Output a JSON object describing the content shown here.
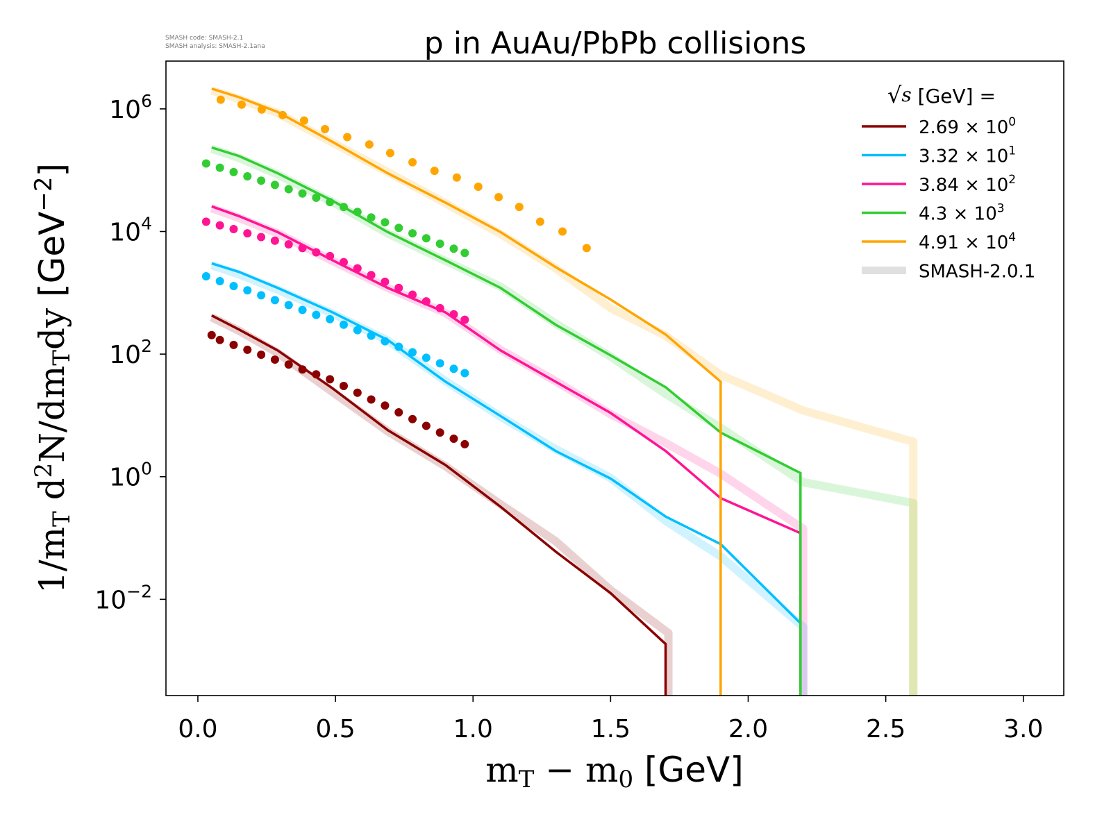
{
  "chart_data": {
    "type": "line",
    "title": "p in AuAu/PbPb collisions",
    "version_info": [
      "SMASH code:      SMASH-2.1",
      "SMASH analysis: SMASH-2.1ana"
    ],
    "xlabel": "m_T − m_0 [GeV]",
    "xlabel_parts": {
      "m": "m",
      "T": "T",
      "minus": " − m",
      "zero": "0",
      "unit": " [GeV]"
    },
    "ylabel_parts": {
      "a": "1/m",
      "T1": "T",
      "b": " d",
      "sq": "2",
      "c": "N/dm",
      "T2": "T",
      "d": "dy",
      "unit": " [GeV",
      "exp": "−2",
      "close": "]"
    },
    "yscale": "log",
    "xlim": [
      -0.116,
      3.147
    ],
    "ylim_log10": [
      -3.57,
      6.78
    ],
    "x_ticks": [
      "0.0",
      "0.5",
      "1.0",
      "1.5",
      "2.0",
      "2.5",
      "3.0"
    ],
    "x_tick_values": [
      0,
      0.5,
      1.0,
      1.5,
      2.0,
      2.5,
      3.0
    ],
    "y_ticks": [
      {
        "base": "10",
        "exp": "−2",
        "log10": -2
      },
      {
        "base": "10",
        "exp": "0",
        "log10": 0
      },
      {
        "base": "10",
        "exp": "2",
        "log10": 2
      },
      {
        "base": "10",
        "exp": "4",
        "log10": 4
      },
      {
        "base": "10",
        "exp": "6",
        "log10": 6
      }
    ],
    "legend": {
      "placement": "top-right",
      "title_sqrt": "s",
      "title_rest": " [GeV] =",
      "entries": [
        {
          "mant": "2.69 × 10",
          "exp": "0",
          "color": "#8b0000"
        },
        {
          "mant": "3.32 × 10",
          "exp": "1",
          "color": "#00bfff"
        },
        {
          "mant": "3.84 × 10",
          "exp": "2",
          "color": "#ff1493"
        },
        {
          "mant": "4.3 × 10",
          "exp": "3",
          "color": "#32cd32"
        },
        {
          "mant": "4.91 × 10",
          "exp": "4",
          "color": "#ffa500"
        },
        {
          "mant": "SMASH-2.0.1",
          "exp": "",
          "color": "#e0e0e0"
        }
      ]
    },
    "series": [
      {
        "name": "2.69",
        "color": "#8b0000",
        "line_x": [
          0.05,
          0.15,
          0.29,
          0.49,
          0.69,
          0.9,
          1.1,
          1.3,
          1.5,
          1.7,
          1.7
        ],
        "line_log10_y": [
          2.63,
          2.4,
          2.06,
          1.44,
          0.76,
          0.19,
          -0.49,
          -1.22,
          -1.9,
          -2.73,
          -3.6
        ],
        "band_x": [
          0.05,
          0.15,
          0.29,
          0.49,
          0.69,
          0.9,
          1.1,
          1.3,
          1.5,
          1.71,
          1.71
        ],
        "band_log10_y": [
          2.6,
          2.38,
          2.02,
          1.38,
          0.74,
          0.17,
          -0.45,
          -1.05,
          -1.85,
          -2.55,
          -3.6
        ],
        "data_x": [
          0.05,
          0.08,
          0.13,
          0.18,
          0.23,
          0.28,
          0.33,
          0.38,
          0.43,
          0.48,
          0.53,
          0.58,
          0.63,
          0.68,
          0.73,
          0.78,
          0.83,
          0.88,
          0.93,
          0.97
        ],
        "data_log10_y": [
          2.31,
          2.23,
          2.15,
          2.07,
          1.99,
          1.91,
          1.83,
          1.75,
          1.67,
          1.59,
          1.48,
          1.37,
          1.26,
          1.16,
          1.05,
          0.94,
          0.83,
          0.72,
          0.62,
          0.53
        ]
      },
      {
        "name": "33.2",
        "color": "#00bfff",
        "line_x": [
          0.05,
          0.15,
          0.29,
          0.49,
          0.69,
          0.9,
          1.1,
          1.3,
          1.5,
          1.7,
          1.9,
          2.19,
          2.19
        ],
        "line_log10_y": [
          3.48,
          3.34,
          3.08,
          2.68,
          2.23,
          1.55,
          0.99,
          0.42,
          -0.03,
          -0.65,
          -1.1,
          -2.39,
          -3.6
        ],
        "band_x": [
          0.05,
          0.15,
          0.29,
          0.49,
          0.69,
          0.9,
          1.1,
          1.3,
          1.5,
          1.7,
          1.9,
          2.2,
          2.2
        ],
        "band_log10_y": [
          3.45,
          3.3,
          3.05,
          2.66,
          2.22,
          1.56,
          0.98,
          0.45,
          -0.02,
          -0.72,
          -1.3,
          -2.45,
          -3.6
        ],
        "data_x": [
          0.03,
          0.08,
          0.13,
          0.18,
          0.23,
          0.28,
          0.33,
          0.38,
          0.43,
          0.48,
          0.53,
          0.58,
          0.63,
          0.68,
          0.73,
          0.78,
          0.83,
          0.88,
          0.93,
          0.97
        ],
        "data_log10_y": [
          3.27,
          3.19,
          3.11,
          3.04,
          2.96,
          2.88,
          2.8,
          2.72,
          2.64,
          2.57,
          2.48,
          2.39,
          2.3,
          2.21,
          2.12,
          2.03,
          1.94,
          1.85,
          1.76,
          1.69
        ]
      },
      {
        "name": "384",
        "color": "#ff1493",
        "line_x": [
          0.05,
          0.15,
          0.29,
          0.49,
          0.69,
          0.9,
          1.1,
          1.3,
          1.5,
          1.7,
          1.9,
          2.19,
          2.19
        ],
        "line_log10_y": [
          4.41,
          4.25,
          3.99,
          3.53,
          3.08,
          2.68,
          2.06,
          1.55,
          1.04,
          0.42,
          -0.35,
          -0.92,
          -3.6
        ],
        "band_x": [
          0.05,
          0.15,
          0.29,
          0.49,
          0.69,
          0.9,
          1.1,
          1.3,
          1.5,
          1.7,
          1.9,
          2.2,
          2.2
        ],
        "band_log10_y": [
          4.38,
          4.22,
          3.97,
          3.52,
          3.08,
          2.67,
          2.07,
          1.56,
          1.02,
          0.55,
          0.05,
          -0.85,
          -3.6
        ],
        "data_x": [
          0.03,
          0.08,
          0.13,
          0.18,
          0.23,
          0.28,
          0.33,
          0.38,
          0.43,
          0.48,
          0.53,
          0.58,
          0.63,
          0.68,
          0.73,
          0.78,
          0.83,
          0.88,
          0.93,
          0.97
        ],
        "data_log10_y": [
          4.16,
          4.1,
          4.04,
          3.97,
          3.91,
          3.85,
          3.79,
          3.73,
          3.66,
          3.6,
          3.5,
          3.4,
          3.29,
          3.18,
          3.08,
          2.97,
          2.86,
          2.75,
          2.65,
          2.56
        ]
      },
      {
        "name": "4300",
        "color": "#32cd32",
        "line_x": [
          0.05,
          0.15,
          0.29,
          0.49,
          0.69,
          0.9,
          1.1,
          1.3,
          1.5,
          1.7,
          1.9,
          2.19,
          2.19
        ],
        "line_log10_y": [
          5.37,
          5.23,
          4.95,
          4.5,
          3.99,
          3.53,
          3.08,
          2.48,
          1.98,
          1.46,
          0.72,
          0.06,
          -3.6
        ],
        "band_x": [
          0.05,
          0.15,
          0.29,
          0.49,
          0.69,
          0.9,
          1.1,
          1.3,
          1.5,
          1.7,
          1.9,
          2.2,
          2.6,
          2.6
        ],
        "band_log10_y": [
          5.35,
          5.2,
          4.93,
          4.48,
          3.97,
          3.52,
          3.1,
          2.5,
          1.96,
          1.35,
          0.8,
          -0.09,
          -0.43,
          -3.6
        ],
        "data_x": [
          0.03,
          0.08,
          0.13,
          0.18,
          0.23,
          0.28,
          0.33,
          0.38,
          0.43,
          0.48,
          0.53,
          0.58,
          0.63,
          0.68,
          0.73,
          0.78,
          0.83,
          0.88,
          0.93,
          0.97
        ],
        "data_log10_y": [
          5.11,
          5.04,
          4.97,
          4.9,
          4.83,
          4.76,
          4.69,
          4.62,
          4.55,
          4.48,
          4.4,
          4.32,
          4.23,
          4.15,
          4.06,
          3.97,
          3.89,
          3.8,
          3.72,
          3.65
        ]
      },
      {
        "name": "49100",
        "color": "#ffa500",
        "line_x": [
          0.05,
          0.15,
          0.29,
          0.49,
          0.69,
          0.9,
          1.1,
          1.3,
          1.5,
          1.7,
          1.9,
          1.9
        ],
        "line_log10_y": [
          6.33,
          6.19,
          5.95,
          5.46,
          4.95,
          4.47,
          3.99,
          3.42,
          2.89,
          2.32,
          1.55,
          -3.6
        ],
        "band_x": [
          0.05,
          0.15,
          0.29,
          0.49,
          0.69,
          0.9,
          1.1,
          1.3,
          1.5,
          1.7,
          1.9,
          2.2,
          2.6,
          2.6
        ],
        "band_log10_y": [
          6.3,
          6.16,
          5.93,
          5.45,
          4.97,
          4.46,
          3.96,
          3.4,
          2.75,
          2.3,
          1.66,
          1.08,
          0.57,
          -3.6
        ],
        "data_x": [
          0.083,
          0.159,
          0.232,
          0.308,
          0.386,
          0.462,
          0.543,
          0.623,
          0.699,
          0.78,
          0.86,
          0.941,
          1.019,
          1.093,
          1.168,
          1.244,
          1.325,
          1.413
        ],
        "data_log10_y": [
          6.15,
          6.07,
          5.99,
          5.9,
          5.81,
          5.67,
          5.54,
          5.42,
          5.28,
          5.13,
          4.99,
          4.88,
          4.73,
          4.56,
          4.4,
          4.16,
          4.0,
          3.73
        ]
      }
    ]
  }
}
